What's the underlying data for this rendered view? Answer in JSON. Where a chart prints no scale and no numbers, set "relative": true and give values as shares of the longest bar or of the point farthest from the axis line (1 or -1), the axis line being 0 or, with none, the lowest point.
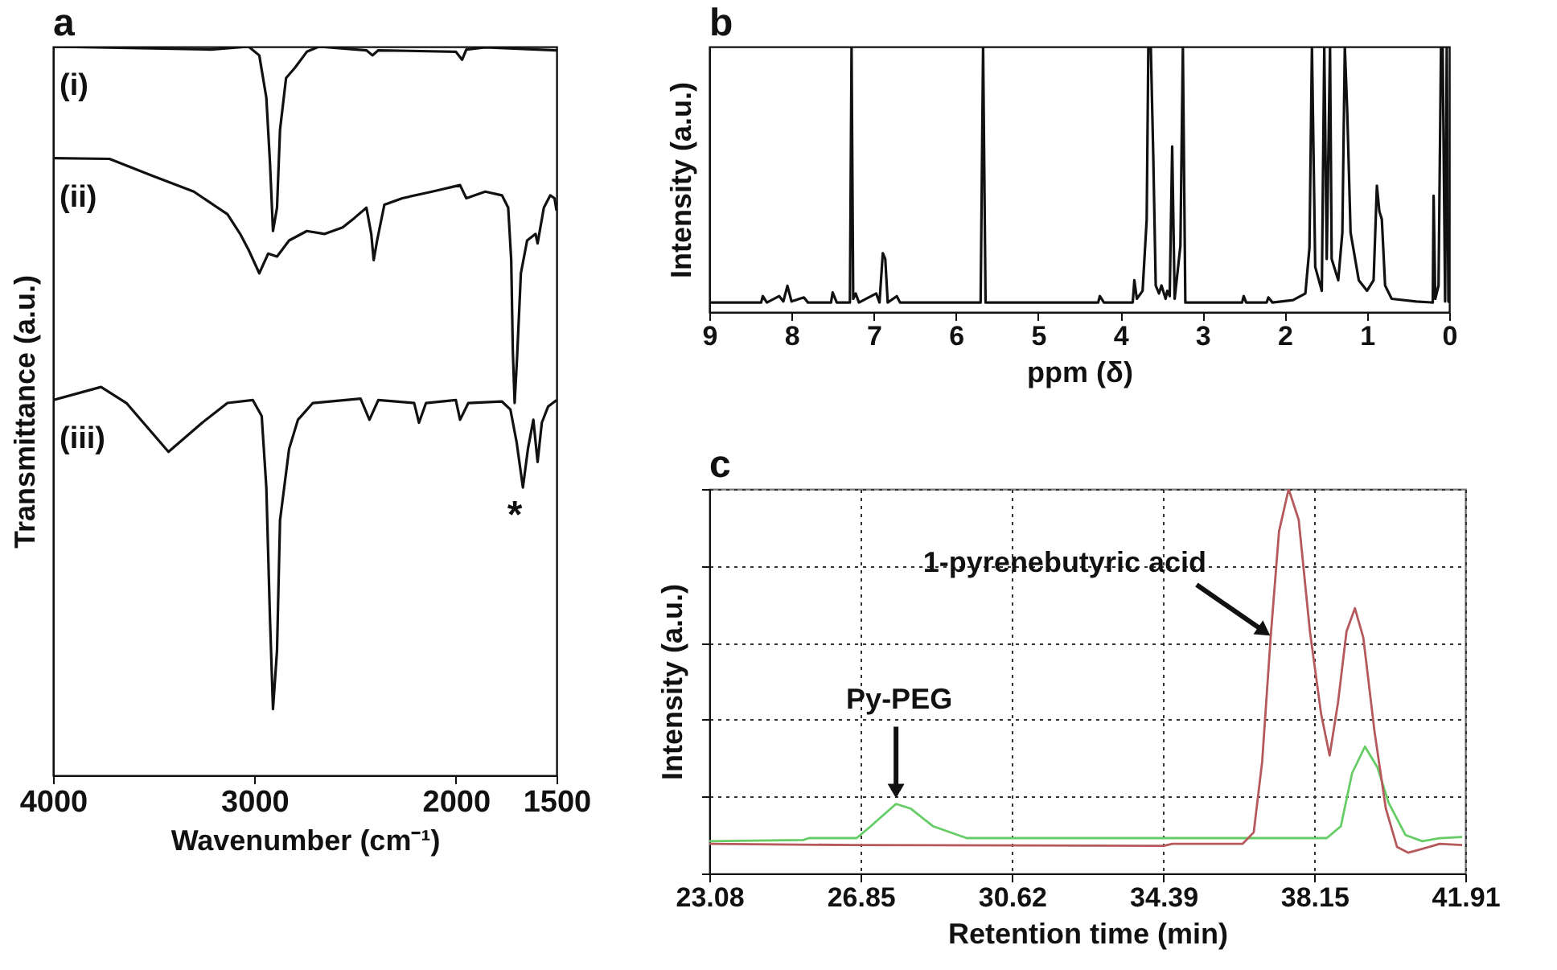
{
  "chart_data": [
    {
      "type": "line",
      "title": "a",
      "xlabel": "Wavenumber (cm⁻¹)",
      "ylabel": "Transmittance (a.u.)",
      "relative": true,
      "xlim": [
        4000,
        1500
      ],
      "xticks": [
        4000,
        3000,
        2000,
        1500
      ],
      "annotations": [
        "*"
      ],
      "series": [
        {
          "name": "(i)",
          "color": "#111111",
          "x": [
            4000,
            3218,
            3029,
            2976,
            2941,
            2923,
            2908,
            2888,
            2873,
            2843,
            2799,
            2740,
            2680,
            2444,
            2414,
            2385,
            2000,
            1969,
            1948,
            1854,
            1500
          ],
          "values": [
            1.0,
            0.996,
            1.0,
            0.988,
            0.93,
            0.841,
            0.747,
            0.779,
            0.886,
            0.957,
            0.971,
            0.993,
            1.0,
            0.995,
            0.988,
            0.995,
            0.993,
            0.982,
            0.996,
            0.999,
            0.995
          ]
        },
        {
          "name": "(ii)",
          "color": "#111111",
          "x": [
            4000,
            3720,
            3510,
            3301,
            3134,
            3071,
            3029,
            2976,
            2932,
            2888,
            2828,
            2740,
            2651,
            2562,
            2503,
            2444,
            2420,
            2408,
            2391,
            2355,
            2266,
            2118,
            1979,
            1948,
            1854,
            1771,
            1740,
            1725,
            1717,
            1708,
            1696,
            1677,
            1646,
            1604,
            1594,
            1563,
            1531,
            1510,
            1500
          ],
          "values": [
            0.847,
            0.846,
            0.823,
            0.801,
            0.77,
            0.743,
            0.721,
            0.689,
            0.716,
            0.712,
            0.734,
            0.747,
            0.743,
            0.752,
            0.765,
            0.779,
            0.743,
            0.707,
            0.734,
            0.783,
            0.792,
            0.801,
            0.81,
            0.792,
            0.801,
            0.796,
            0.779,
            0.707,
            0.582,
            0.511,
            0.573,
            0.689,
            0.734,
            0.743,
            0.73,
            0.779,
            0.796,
            0.792,
            0.775
          ]
        },
        {
          "name": "(iii)",
          "color": "#111111",
          "x": [
            4000,
            3762,
            3636,
            3427,
            3259,
            3134,
            3008,
            2964,
            2941,
            2923,
            2908,
            2888,
            2873,
            2828,
            2784,
            2710,
            2473,
            2429,
            2385,
            2207,
            2183,
            2148,
            2000,
            1979,
            1938,
            1771,
            1729,
            1698,
            1667,
            1642,
            1615,
            1594,
            1573,
            1542,
            1500
          ],
          "values": [
            0.515,
            0.533,
            0.511,
            0.444,
            0.484,
            0.511,
            0.515,
            0.493,
            0.395,
            0.216,
            0.091,
            0.171,
            0.35,
            0.448,
            0.488,
            0.511,
            0.517,
            0.488,
            0.515,
            0.511,
            0.484,
            0.511,
            0.515,
            0.488,
            0.511,
            0.513,
            0.502,
            0.457,
            0.395,
            0.448,
            0.488,
            0.43,
            0.484,
            0.506,
            0.515
          ]
        }
      ]
    },
    {
      "type": "line",
      "title": "b",
      "xlabel": "ppm (δ)",
      "ylabel": "Intensity (a.u.)",
      "relative": true,
      "xlim": [
        9,
        0
      ],
      "xticks": [
        9,
        8,
        7,
        6,
        5,
        4,
        3,
        2,
        1,
        0
      ],
      "series": [
        {
          "color": "#111111",
          "x": [
            9.0,
            8.37,
            8.35,
            8.3,
            8.15,
            8.1,
            8.05,
            8.0,
            7.85,
            7.8,
            7.52,
            7.5,
            7.45,
            7.29,
            7.27,
            7.25,
            7.22,
            7.18,
            6.97,
            6.93,
            6.89,
            6.86,
            6.83,
            6.72,
            6.68,
            5.7,
            5.67,
            5.64,
            4.27,
            4.25,
            4.2,
            3.85,
            3.83,
            3.8,
            3.73,
            3.68,
            3.66,
            3.63,
            3.6,
            3.57,
            3.53,
            3.5,
            3.45,
            3.43,
            3.4,
            3.37,
            3.34,
            3.27,
            3.24,
            3.21,
            2.52,
            2.5,
            2.47,
            2.22,
            2.2,
            2.15,
            1.9,
            1.75,
            1.7,
            1.67,
            1.63,
            1.55,
            1.52,
            1.49,
            1.45,
            1.43,
            1.35,
            1.3,
            1.27,
            1.24,
            1.2,
            1.1,
            1.0,
            0.92,
            0.88,
            0.85,
            0.82,
            0.78,
            0.7,
            0.4,
            0.2,
            0.19,
            0.17,
            0.13,
            0.1,
            0.08,
            0.05,
            0.03,
            0.01,
            0.0
          ],
          "values": [
            0.036,
            0.036,
            0.06,
            0.036,
            0.06,
            0.04,
            0.099,
            0.04,
            0.055,
            0.036,
            0.036,
            0.074,
            0.036,
            0.036,
            1.0,
            0.05,
            0.07,
            0.036,
            0.07,
            0.036,
            0.222,
            0.2,
            0.036,
            0.06,
            0.036,
            0.036,
            1.0,
            0.036,
            0.036,
            0.06,
            0.036,
            0.036,
            0.12,
            0.05,
            0.08,
            0.349,
            1.0,
            1.0,
            0.586,
            0.1,
            0.07,
            0.1,
            0.05,
            0.08,
            0.06,
            0.624,
            0.05,
            0.25,
            1.0,
            0.036,
            0.036,
            0.06,
            0.036,
            0.036,
            0.055,
            0.036,
            0.045,
            0.07,
            0.243,
            1.0,
            0.17,
            0.08,
            1.0,
            0.2,
            1.0,
            0.2,
            0.12,
            0.3,
            1.0,
            0.75,
            0.3,
            0.12,
            0.08,
            0.12,
            0.476,
            0.38,
            0.35,
            0.1,
            0.05,
            0.04,
            0.036,
            0.438,
            0.05,
            0.1,
            1.0,
            1.0,
            0.04,
            1.0,
            0.04,
            0.036
          ]
        }
      ]
    },
    {
      "type": "line",
      "title": "c",
      "xlabel": "Retention time (min)",
      "ylabel": "Intensity (a.u.)",
      "relative": true,
      "grid": true,
      "xlim": [
        23.08,
        41.91
      ],
      "xticks": [
        23.08,
        26.85,
        30.62,
        34.39,
        38.15,
        41.91
      ],
      "annotations": [
        {
          "text": "1-pyrenebutyric acid",
          "x": 37.06,
          "y": 0.613
        },
        {
          "text": "Py-PEG",
          "x": 27.73,
          "y": 0.181
        }
      ],
      "series": [
        {
          "color": "#66cc66",
          "x": [
            23.08,
            25.42,
            25.56,
            26.75,
            27.1,
            27.73,
            28.09,
            28.65,
            29.49,
            32.29,
            35.1,
            38.46,
            38.81,
            39.09,
            39.41,
            39.72,
            40.0,
            40.42,
            40.84,
            41.27,
            41.83
          ],
          "values": [
            0.084,
            0.087,
            0.092,
            0.092,
            0.123,
            0.181,
            0.169,
            0.123,
            0.092,
            0.092,
            0.092,
            0.092,
            0.123,
            0.261,
            0.33,
            0.276,
            0.184,
            0.1,
            0.084,
            0.092,
            0.095
          ]
        },
        {
          "color": "#b5595d",
          "x": [
            23.08,
            26.68,
            34.4,
            34.61,
            36.36,
            36.64,
            36.85,
            37.06,
            37.27,
            37.51,
            37.76,
            38.04,
            38.32,
            38.53,
            38.74,
            38.95,
            39.16,
            39.37,
            39.65,
            39.93,
            40.21,
            40.49,
            40.84,
            41.27,
            41.83
          ],
          "values": [
            0.077,
            0.074,
            0.072,
            0.077,
            0.077,
            0.107,
            0.291,
            0.613,
            0.89,
            1.0,
            0.92,
            0.629,
            0.414,
            0.307,
            0.445,
            0.629,
            0.69,
            0.613,
            0.368,
            0.169,
            0.069,
            0.054,
            0.064,
            0.077,
            0.074
          ]
        }
      ]
    }
  ]
}
